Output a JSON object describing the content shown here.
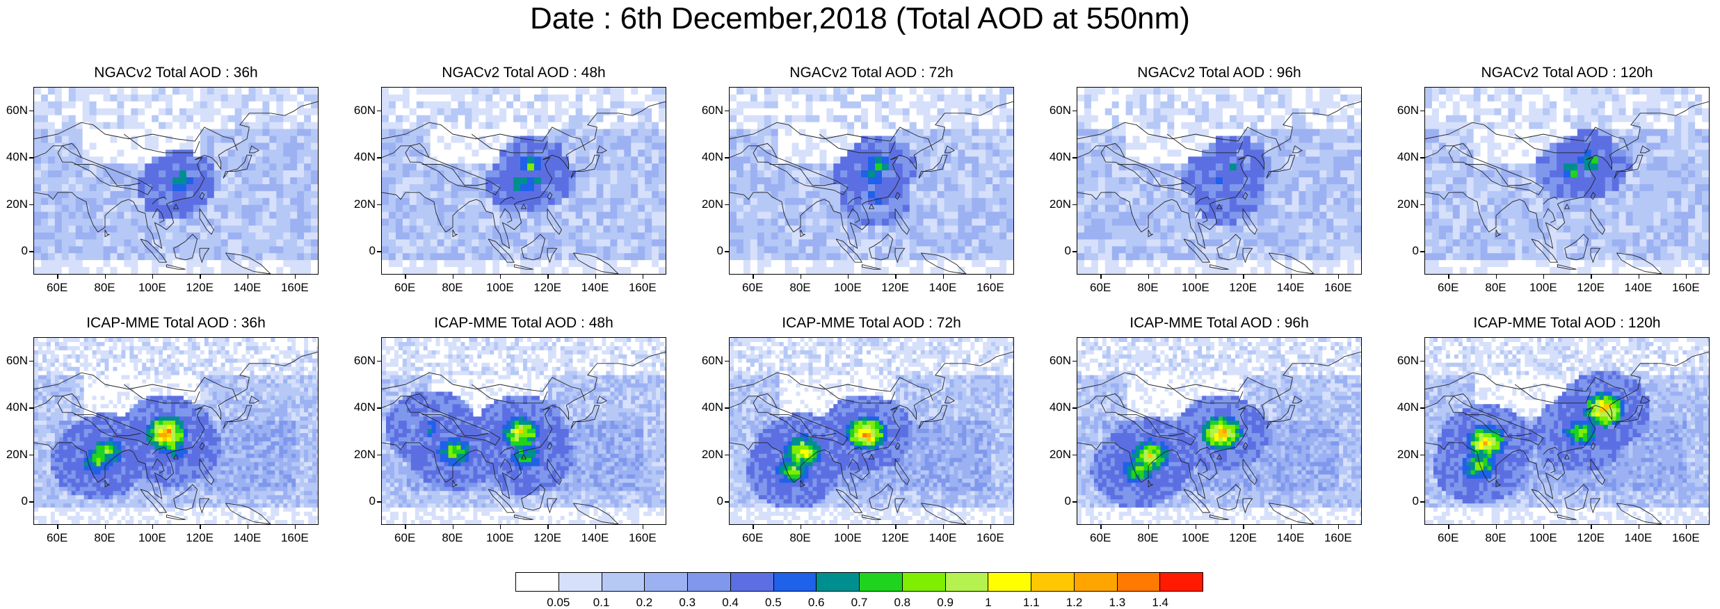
{
  "figure_title": "Date : 6th December,2018 (Total AOD at 550nm)",
  "colors": {
    "background": "#ffffff",
    "map_base": "#cdd9f8",
    "coastline": "#222222"
  },
  "colorbar": {
    "colors": [
      "#ffffff",
      "#d6e0fb",
      "#b6c8f6",
      "#9cb1f2",
      "#7f98ec",
      "#5c6fe2",
      "#1f61e8",
      "#008f8f",
      "#1fd31f",
      "#7fee00",
      "#b5f24f",
      "#ffff00",
      "#ffc800",
      "#ffa500",
      "#ff7a00",
      "#ff1a00"
    ],
    "labels": [
      "0.05",
      "0.1",
      "0.2",
      "0.3",
      "0.4",
      "0.5",
      "0.6",
      "0.7",
      "0.8",
      "0.9",
      "1",
      "1.1",
      "1.2",
      "1.3",
      "1.4"
    ]
  },
  "chart_data": [
    {
      "type": "heatmap",
      "title": "NGACv2 Total AOD : 36h",
      "lon_ticks": [
        "60E",
        "80E",
        "100E",
        "120E",
        "140E",
        "160E"
      ],
      "lat_ticks": [
        "60N",
        "40N",
        "20N",
        "0"
      ],
      "lon_range": [
        50,
        170
      ],
      "lat_range": [
        -10,
        70
      ],
      "hotspots": [
        {
          "lon": 110,
          "lat": 32,
          "aod": 0.8
        },
        {
          "lon": 108,
          "lat": 28,
          "aod": 0.6
        }
      ]
    },
    {
      "type": "heatmap",
      "title": "NGACv2 Total AOD : 48h",
      "lon_ticks": [
        "60E",
        "80E",
        "100E",
        "120E",
        "140E",
        "160E"
      ],
      "lat_ticks": [
        "60N",
        "40N",
        "20N",
        "0"
      ],
      "lon_range": [
        50,
        170
      ],
      "lat_range": [
        -10,
        70
      ],
      "hotspots": [
        {
          "lon": 112,
          "lat": 38,
          "aod": 0.8
        },
        {
          "lon": 108,
          "lat": 30,
          "aod": 0.8
        },
        {
          "lon": 115,
          "lat": 32,
          "aod": 0.6
        }
      ]
    },
    {
      "type": "heatmap",
      "title": "NGACv2 Total AOD : 72h",
      "lon_ticks": [
        "60E",
        "80E",
        "100E",
        "120E",
        "140E",
        "160E"
      ],
      "lat_ticks": [
        "60N",
        "40N",
        "20N",
        "0"
      ],
      "lon_range": [
        50,
        170
      ],
      "lat_range": [
        -10,
        70
      ],
      "hotspots": [
        {
          "lon": 112,
          "lat": 38,
          "aod": 0.8
        },
        {
          "lon": 108,
          "lat": 34,
          "aod": 0.8
        },
        {
          "lon": 110,
          "lat": 24,
          "aod": 0.6
        }
      ]
    },
    {
      "type": "heatmap",
      "title": "NGACv2 Total AOD : 96h",
      "lon_ticks": [
        "60E",
        "80E",
        "100E",
        "120E",
        "140E",
        "160E"
      ],
      "lat_ticks": [
        "60N",
        "40N",
        "20N",
        "0"
      ],
      "lon_range": [
        50,
        170
      ],
      "lat_range": [
        -10,
        70
      ],
      "hotspots": [
        {
          "lon": 115,
          "lat": 38,
          "aod": 0.6
        },
        {
          "lon": 108,
          "lat": 32,
          "aod": 0.6
        },
        {
          "lon": 112,
          "lat": 26,
          "aod": 0.6
        }
      ]
    },
    {
      "type": "heatmap",
      "title": "NGACv2 Total AOD : 120h",
      "lon_ticks": [
        "60E",
        "80E",
        "100E",
        "120E",
        "140E",
        "160E"
      ],
      "lat_ticks": [
        "60N",
        "40N",
        "20N",
        "0"
      ],
      "lon_range": [
        50,
        170
      ],
      "lat_range": [
        -10,
        70
      ],
      "hotspots": [
        {
          "lon": 118,
          "lat": 40,
          "aod": 0.8
        },
        {
          "lon": 110,
          "lat": 36,
          "aod": 0.8
        },
        {
          "lon": 120,
          "lat": 38,
          "aod": 0.6
        }
      ]
    },
    {
      "type": "heatmap",
      "title": "ICAP-MME Total AOD : 36h",
      "lon_ticks": [
        "60E",
        "80E",
        "100E",
        "120E",
        "140E",
        "160E"
      ],
      "lat_ticks": [
        "60N",
        "40N",
        "20N",
        "0"
      ],
      "lon_range": [
        50,
        170
      ],
      "lat_range": [
        -10,
        70
      ],
      "hotspots": [
        {
          "lon": 105,
          "lat": 30,
          "aod": 1.3
        },
        {
          "lon": 80,
          "lat": 22,
          "aod": 0.9
        },
        {
          "lon": 108,
          "lat": 24,
          "aod": 0.8
        },
        {
          "lon": 76,
          "lat": 18,
          "aod": 0.8
        }
      ]
    },
    {
      "type": "heatmap",
      "title": "ICAP-MME Total AOD : 48h",
      "lon_ticks": [
        "60E",
        "80E",
        "100E",
        "120E",
        "140E",
        "160E"
      ],
      "lat_ticks": [
        "60N",
        "40N",
        "20N",
        "0"
      ],
      "lon_range": [
        50,
        170
      ],
      "lat_range": [
        -10,
        70
      ],
      "hotspots": [
        {
          "lon": 108,
          "lat": 30,
          "aod": 1.1
        },
        {
          "lon": 80,
          "lat": 22,
          "aod": 0.9
        },
        {
          "lon": 110,
          "lat": 20,
          "aod": 0.8
        },
        {
          "lon": 70,
          "lat": 32,
          "aod": 0.6
        }
      ]
    },
    {
      "type": "heatmap",
      "title": "ICAP-MME Total AOD : 72h",
      "lon_ticks": [
        "60E",
        "80E",
        "100E",
        "120E",
        "140E",
        "160E"
      ],
      "lat_ticks": [
        "60N",
        "40N",
        "20N",
        "0"
      ],
      "lon_range": [
        50,
        170
      ],
      "lat_range": [
        -10,
        70
      ],
      "hotspots": [
        {
          "lon": 80,
          "lat": 22,
          "aod": 1.1
        },
        {
          "lon": 107,
          "lat": 30,
          "aod": 1.3
        },
        {
          "lon": 76,
          "lat": 14,
          "aod": 0.9
        }
      ]
    },
    {
      "type": "heatmap",
      "title": "ICAP-MME Total AOD : 96h",
      "lon_ticks": [
        "60E",
        "80E",
        "100E",
        "120E",
        "140E",
        "160E"
      ],
      "lat_ticks": [
        "60N",
        "40N",
        "20N",
        "0"
      ],
      "lon_range": [
        50,
        170
      ],
      "lat_range": [
        -10,
        70
      ],
      "hotspots": [
        {
          "lon": 110,
          "lat": 30,
          "aod": 1.3
        },
        {
          "lon": 80,
          "lat": 20,
          "aod": 1.1
        },
        {
          "lon": 75,
          "lat": 14,
          "aod": 0.9
        }
      ]
    },
    {
      "type": "heatmap",
      "title": "ICAP-MME Total AOD : 120h",
      "lon_ticks": [
        "60E",
        "80E",
        "100E",
        "120E",
        "140E",
        "160E"
      ],
      "lat_ticks": [
        "60N",
        "40N",
        "20N",
        "0"
      ],
      "lon_range": [
        50,
        170
      ],
      "lat_range": [
        -10,
        70
      ],
      "hotspots": [
        {
          "lon": 75,
          "lat": 26,
          "aod": 1.2
        },
        {
          "lon": 125,
          "lat": 40,
          "aod": 1.3
        },
        {
          "lon": 115,
          "lat": 30,
          "aod": 0.9
        },
        {
          "lon": 72,
          "lat": 16,
          "aod": 0.9
        }
      ]
    }
  ]
}
